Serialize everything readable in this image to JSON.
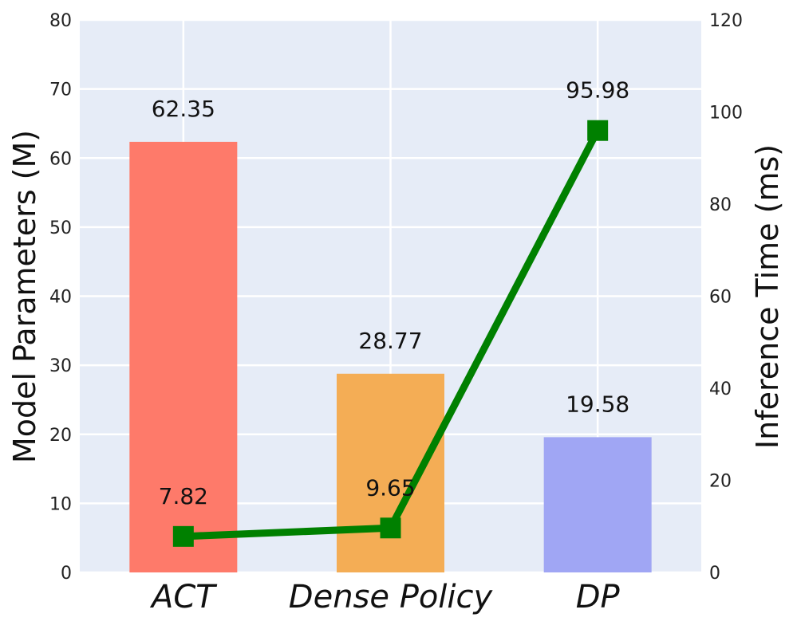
{
  "chart_data": {
    "type": "bar",
    "categories": [
      "ACT",
      "Dense Policy",
      "DP"
    ],
    "bar_series": {
      "name": "Model Parameters (M)",
      "values": [
        62.35,
        28.77,
        19.58
      ],
      "labels": [
        "62.35",
        "28.77",
        "19.58"
      ],
      "colors": [
        "#fe7a6a",
        "#f4ad55",
        "#a0a6f4"
      ]
    },
    "line_series": {
      "name": "Inference Time (ms)",
      "values": [
        7.82,
        9.65,
        95.98
      ],
      "labels": [
        "7.82",
        "9.65",
        "95.98"
      ],
      "color": "#008000"
    },
    "ylabel": "Model Parameters (M)",
    "ylim": [
      0,
      80
    ],
    "yticks": [
      0,
      10,
      20,
      30,
      40,
      50,
      60,
      70,
      80
    ],
    "y2label": "Inference Time (ms)",
    "y2lim": [
      0,
      120
    ],
    "y2ticks": [
      0,
      20,
      40,
      60,
      80,
      100,
      120
    ],
    "grid": true,
    "background": "#e6ecf7",
    "gridcolor": "#ffffff"
  }
}
